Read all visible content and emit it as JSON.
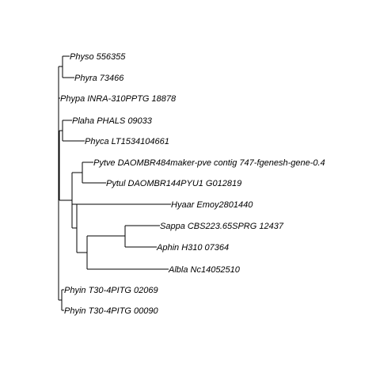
{
  "tree": {
    "leaves": [
      {
        "id": "physo",
        "label": "Physo 556355"
      },
      {
        "id": "phyra",
        "label": "Phyra 73466"
      },
      {
        "id": "phypa",
        "label": "Phypa INRA-310PPTG 18878"
      },
      {
        "id": "plaha",
        "label": "Plaha PHALS 09033"
      },
      {
        "id": "phyca",
        "label": "Phyca LT1534104661"
      },
      {
        "id": "pytve",
        "label": "Pytve DAOMBR484maker-pve contig 747-fgenesh-gene-0.4"
      },
      {
        "id": "pytul",
        "label": "Pytul DAOMBR144PYU1 G012819"
      },
      {
        "id": "hyaar",
        "label": "Hyaar Emoy2801440"
      },
      {
        "id": "sappa",
        "label": "Sappa CBS223.65SPRG 12437"
      },
      {
        "id": "aphin",
        "label": "Aphin H310 07364"
      },
      {
        "id": "albla",
        "label": "Albla Nc14052510"
      },
      {
        "id": "phyin1",
        "label": "Phyin T30-4PITG 02069"
      },
      {
        "id": "phyin2",
        "label": "Phyin T30-4PITG 00090"
      }
    ],
    "line_color": "#000000"
  }
}
